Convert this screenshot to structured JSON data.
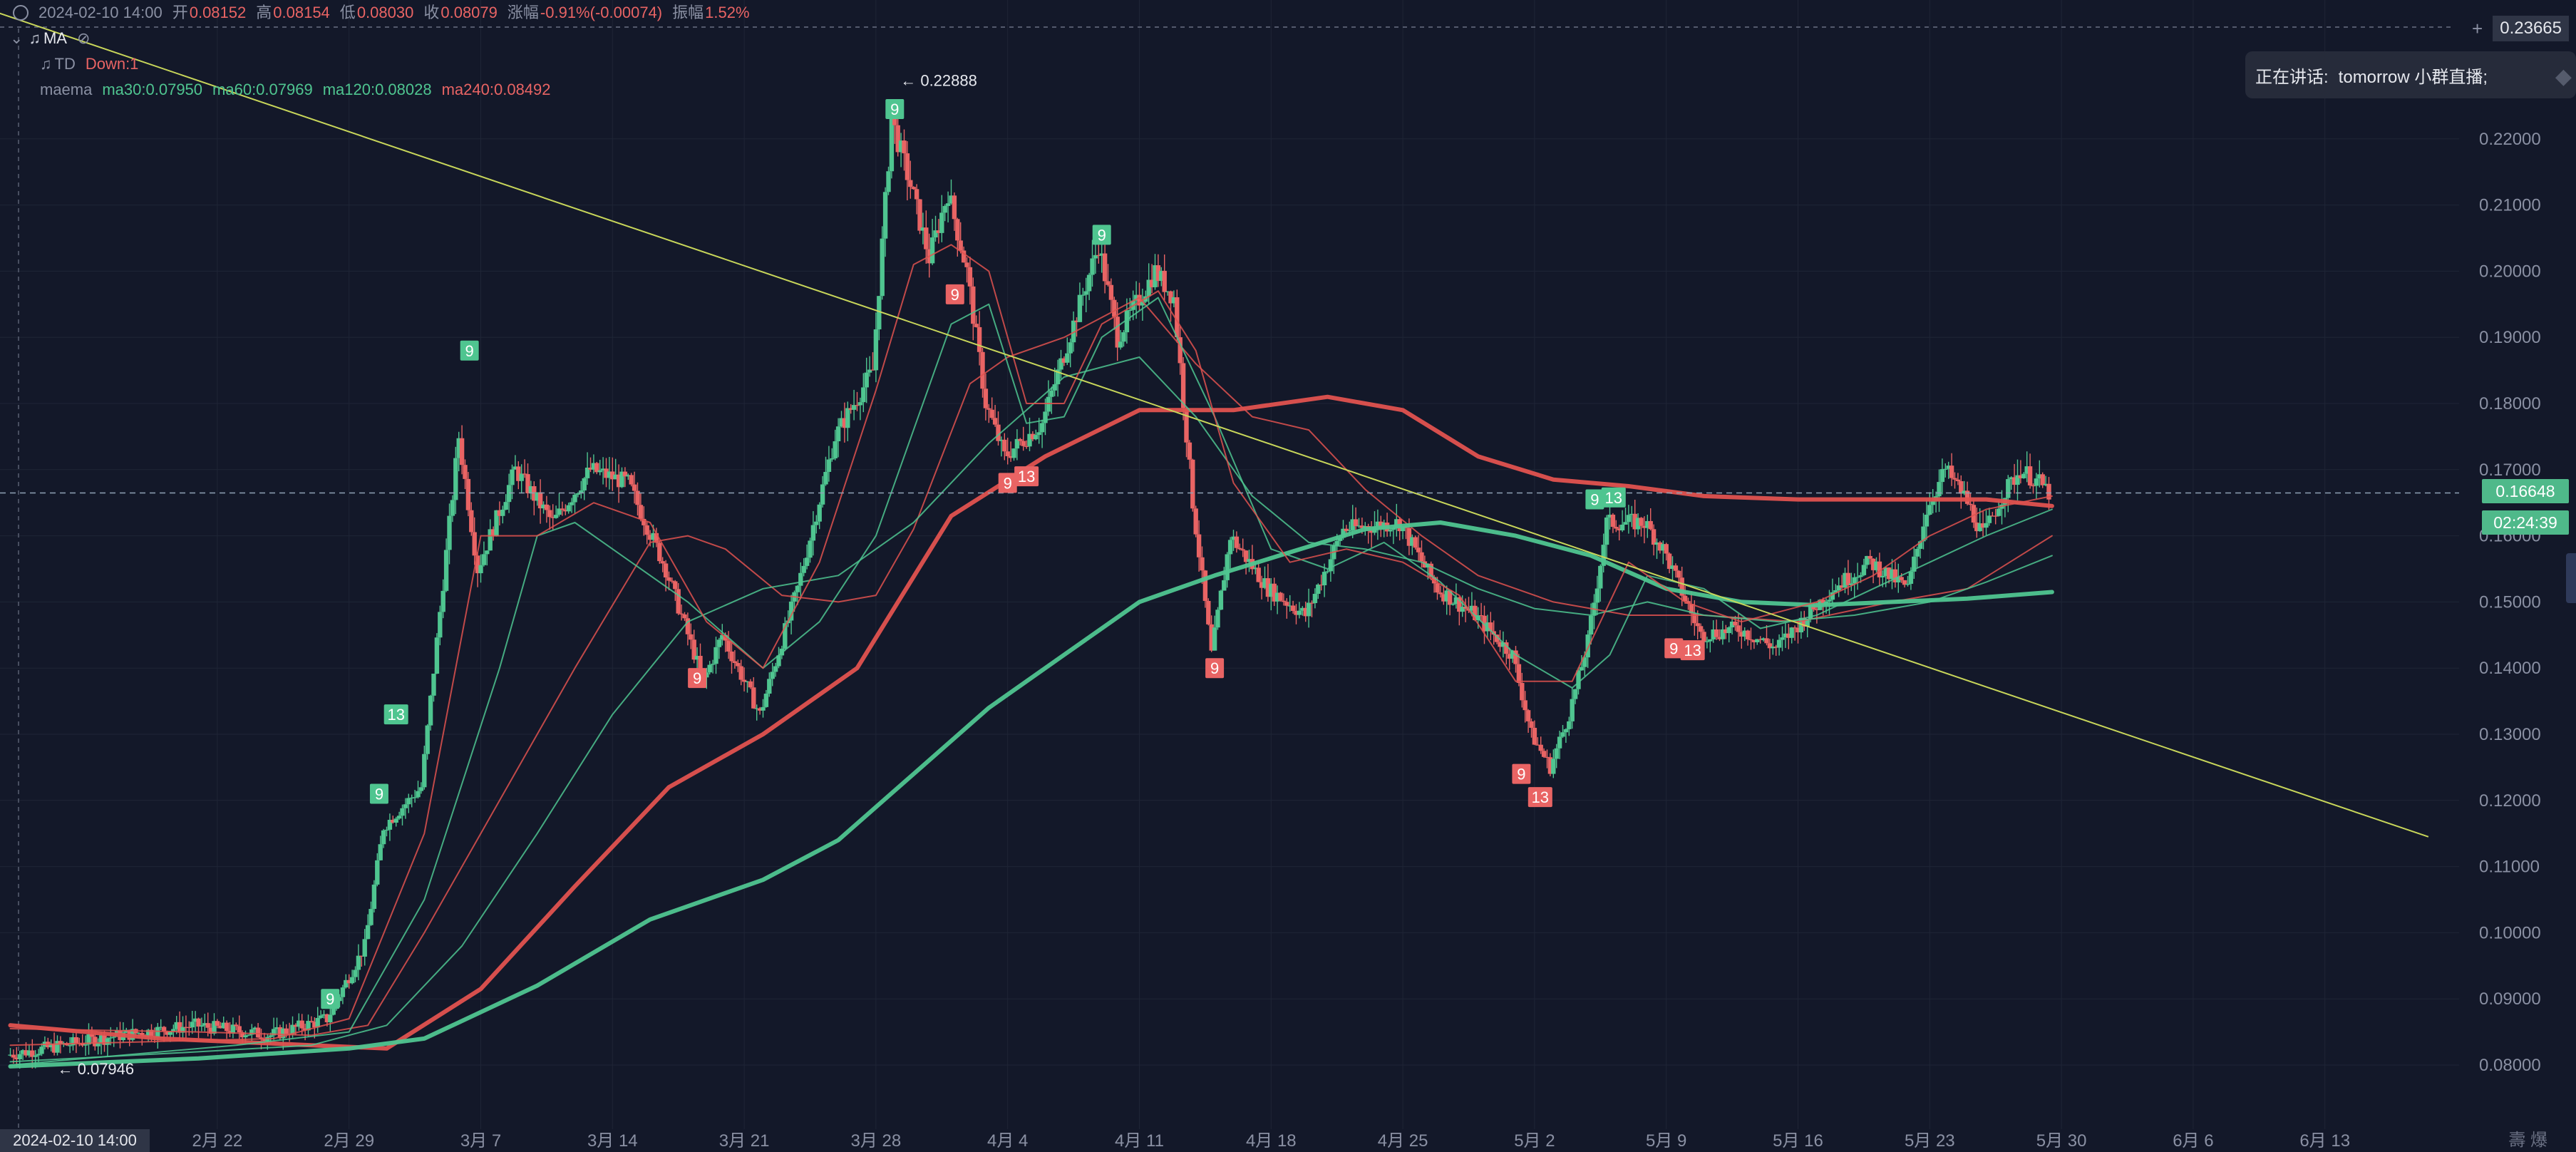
{
  "header": {
    "datetime": "2024-02-10 14:00",
    "open_label": "开",
    "open": "0.08152",
    "high_label": "高",
    "high": "0.08154",
    "low_label": "低",
    "low": "0.08030",
    "close_label": "收",
    "close": "0.08079",
    "change_label": "涨幅",
    "change": "-0.91%(-0.00074)",
    "amplitude_label": "振幅",
    "amplitude": "1.52%"
  },
  "indicators": {
    "ma_label": "MA",
    "td_label": "TD",
    "td_value": "Down:1",
    "maema_label": "maema",
    "ma30": "ma30:0.07950",
    "ma60": "ma60:0.07969",
    "ma120": "ma120:0.08028",
    "ma240": "ma240:0.08492"
  },
  "popup": {
    "label": "正在讲话:",
    "text": "tomorrow 小群直播;"
  },
  "price_axis": {
    "top_value": "0.23665",
    "current_price": "0.16648",
    "countdown": "02:24:39"
  },
  "crosshair_date": "2024-02-10 14:00",
  "bottom_right_text": "壽  爆",
  "colors": {
    "up": "#4fc590",
    "down": "#e96464",
    "ma_red": "#e0524f",
    "ma_green": "#4fc590",
    "trendline": "#c8d65a",
    "background": "#131829"
  },
  "chart_data": {
    "type": "line",
    "title": "",
    "xlabel": "",
    "ylabel": "",
    "ylim": [
      0.0738,
      0.2354
    ],
    "y_ticks": [
      "0.22000",
      "0.21000",
      "0.20000",
      "0.19000",
      "0.18000",
      "0.17000",
      "0.16000",
      "0.15000",
      "0.14000",
      "0.13000",
      "0.12000",
      "0.11000",
      "0.10000",
      "0.09000",
      "0.08000"
    ],
    "x_ticks": [
      {
        "label": "2月 22",
        "day": 11
      },
      {
        "label": "2月 29",
        "day": 18
      },
      {
        "label": "3月 7",
        "day": 25
      },
      {
        "label": "3月 14",
        "day": 32
      },
      {
        "label": "3月 21",
        "day": 39
      },
      {
        "label": "3月 28",
        "day": 46
      },
      {
        "label": "4月 4",
        "day": 53
      },
      {
        "label": "4月 11",
        "day": 60
      },
      {
        "label": "4月 18",
        "day": 67
      },
      {
        "label": "4月 25",
        "day": 74
      },
      {
        "label": "5月 2",
        "day": 81
      },
      {
        "label": "5月 9",
        "day": 88
      },
      {
        "label": "5月 16",
        "day": 95
      },
      {
        "label": "5月 23",
        "day": 102
      },
      {
        "label": "5月 30",
        "day": 109
      },
      {
        "label": "6月 6",
        "day": 116
      },
      {
        "label": "6月 13",
        "day": 123
      }
    ],
    "price_path": [
      [
        0,
        0.0815
      ],
      [
        6,
        0.0845
      ],
      [
        10,
        0.086
      ],
      [
        14,
        0.0845
      ],
      [
        17,
        0.087
      ],
      [
        19,
        0.098
      ],
      [
        20,
        0.116
      ],
      [
        22,
        0.122
      ],
      [
        24,
        0.175
      ],
      [
        25,
        0.155
      ],
      [
        27,
        0.17
      ],
      [
        29,
        0.162
      ],
      [
        31,
        0.17
      ],
      [
        33,
        0.168
      ],
      [
        35,
        0.155
      ],
      [
        37,
        0.138
      ],
      [
        38,
        0.145
      ],
      [
        40,
        0.133
      ],
      [
        42,
        0.152
      ],
      [
        44,
        0.175
      ],
      [
        46,
        0.185
      ],
      [
        47,
        0.223
      ],
      [
        48,
        0.213
      ],
      [
        49,
        0.202
      ],
      [
        50,
        0.212
      ],
      [
        51,
        0.2
      ],
      [
        52,
        0.18
      ],
      [
        53,
        0.172
      ],
      [
        55,
        0.177
      ],
      [
        57,
        0.195
      ],
      [
        58,
        0.204
      ],
      [
        59,
        0.19
      ],
      [
        61,
        0.2
      ],
      [
        62,
        0.196
      ],
      [
        63,
        0.165
      ],
      [
        64,
        0.142
      ],
      [
        65,
        0.16
      ],
      [
        67,
        0.152
      ],
      [
        69,
        0.148
      ],
      [
        71,
        0.161
      ],
      [
        74,
        0.162
      ],
      [
        76,
        0.152
      ],
      [
        78,
        0.148
      ],
      [
        80,
        0.142
      ],
      [
        81,
        0.13
      ],
      [
        82,
        0.125
      ],
      [
        83,
        0.133
      ],
      [
        84,
        0.144
      ],
      [
        85,
        0.162
      ],
      [
        87,
        0.162
      ],
      [
        88,
        0.158
      ],
      [
        90,
        0.145
      ],
      [
        92,
        0.146
      ],
      [
        94,
        0.143
      ],
      [
        95,
        0.146
      ],
      [
        97,
        0.152
      ],
      [
        99,
        0.156
      ],
      [
        101,
        0.152
      ],
      [
        102,
        0.164
      ],
      [
        103,
        0.17
      ],
      [
        104,
        0.166
      ],
      [
        105,
        0.16
      ],
      [
        106,
        0.166
      ],
      [
        107,
        0.17
      ],
      [
        108,
        0.168
      ],
      [
        108.5,
        0.1665
      ]
    ],
    "series": [
      {
        "color_key": "ma_red",
        "thick": true,
        "points": [
          [
            0,
            0.086
          ],
          [
            8,
            0.084
          ],
          [
            16,
            0.083
          ],
          [
            20,
            0.0825
          ],
          [
            25,
            0.0915
          ],
          [
            30,
            0.107
          ],
          [
            35,
            0.122
          ],
          [
            40,
            0.13
          ],
          [
            45,
            0.14
          ],
          [
            50,
            0.163
          ],
          [
            55,
            0.172
          ],
          [
            60,
            0.179
          ],
          [
            65,
            0.179
          ],
          [
            70,
            0.181
          ],
          [
            74,
            0.179
          ],
          [
            78,
            0.172
          ],
          [
            82,
            0.1685
          ],
          [
            86,
            0.1675
          ],
          [
            90,
            0.166
          ],
          [
            95,
            0.1655
          ],
          [
            100,
            0.1655
          ],
          [
            105,
            0.1655
          ],
          [
            108.5,
            0.1645
          ]
        ]
      },
      {
        "color_key": "ma_red",
        "thick": false,
        "points": [
          [
            0,
            0.0855
          ],
          [
            10,
            0.085
          ],
          [
            16,
            0.0845
          ],
          [
            19,
            0.086
          ],
          [
            22,
            0.1
          ],
          [
            25,
            0.115
          ],
          [
            30,
            0.14
          ],
          [
            34,
            0.159
          ],
          [
            36,
            0.16
          ],
          [
            38,
            0.158
          ],
          [
            41,
            0.151
          ],
          [
            44,
            0.15
          ],
          [
            46,
            0.151
          ],
          [
            48,
            0.161
          ],
          [
            51,
            0.183
          ],
          [
            53,
            0.187
          ],
          [
            56,
            0.19
          ],
          [
            60,
            0.196
          ],
          [
            63,
            0.186
          ],
          [
            66,
            0.178
          ],
          [
            69,
            0.176
          ],
          [
            72,
            0.167
          ],
          [
            75,
            0.16
          ],
          [
            78,
            0.154
          ],
          [
            82,
            0.15
          ],
          [
            86,
            0.148
          ],
          [
            90,
            0.148
          ],
          [
            95,
            0.147
          ],
          [
            100,
            0.15
          ],
          [
            104,
            0.152
          ],
          [
            108.5,
            0.16
          ]
        ]
      },
      {
        "color_key": "ma_green",
        "thick": true,
        "points": [
          [
            0,
            0.0798
          ],
          [
            10,
            0.081
          ],
          [
            18,
            0.0825
          ],
          [
            22,
            0.084
          ],
          [
            28,
            0.092
          ],
          [
            34,
            0.102
          ],
          [
            40,
            0.108
          ],
          [
            44,
            0.114
          ],
          [
            48,
            0.124
          ],
          [
            52,
            0.134
          ],
          [
            56,
            0.142
          ],
          [
            60,
            0.15
          ],
          [
            64,
            0.154
          ],
          [
            68,
            0.1575
          ],
          [
            72,
            0.161
          ],
          [
            76,
            0.162
          ],
          [
            80,
            0.16
          ],
          [
            84,
            0.157
          ],
          [
            88,
            0.152
          ],
          [
            92,
            0.15
          ],
          [
            96,
            0.1495
          ],
          [
            100,
            0.15
          ],
          [
            104,
            0.1505
          ],
          [
            108.5,
            0.1515
          ]
        ]
      },
      {
        "color_key": "ma_green",
        "thick": false,
        "points": [
          [
            0,
            0.0805
          ],
          [
            10,
            0.082
          ],
          [
            16,
            0.083
          ],
          [
            20,
            0.086
          ],
          [
            24,
            0.098
          ],
          [
            28,
            0.115
          ],
          [
            32,
            0.133
          ],
          [
            36,
            0.147
          ],
          [
            40,
            0.152
          ],
          [
            44,
            0.154
          ],
          [
            48,
            0.162
          ],
          [
            52,
            0.174
          ],
          [
            56,
            0.184
          ],
          [
            60,
            0.187
          ],
          [
            63,
            0.178
          ],
          [
            66,
            0.166
          ],
          [
            69,
            0.159
          ],
          [
            72,
            0.158
          ],
          [
            75,
            0.156
          ],
          [
            78,
            0.152
          ],
          [
            81,
            0.149
          ],
          [
            84,
            0.148
          ],
          [
            87,
            0.15
          ],
          [
            90,
            0.148
          ],
          [
            94,
            0.147
          ],
          [
            98,
            0.148
          ],
          [
            102,
            0.15
          ],
          [
            105,
            0.153
          ],
          [
            108.5,
            0.157
          ]
        ]
      },
      {
        "color_key": "ma_green",
        "thick": false,
        "points": [
          [
            0,
            0.08
          ],
          [
            12,
            0.083
          ],
          [
            18,
            0.085
          ],
          [
            22,
            0.105
          ],
          [
            26,
            0.14
          ],
          [
            28,
            0.16
          ],
          [
            30,
            0.162
          ],
          [
            33,
            0.156
          ],
          [
            36,
            0.15
          ],
          [
            40,
            0.14
          ],
          [
            43,
            0.147
          ],
          [
            46,
            0.16
          ],
          [
            48,
            0.176
          ],
          [
            50,
            0.192
          ],
          [
            52,
            0.195
          ],
          [
            54,
            0.177
          ],
          [
            56,
            0.178
          ],
          [
            58,
            0.19
          ],
          [
            61,
            0.196
          ],
          [
            64,
            0.178
          ],
          [
            67,
            0.158
          ],
          [
            70,
            0.155
          ],
          [
            73,
            0.159
          ],
          [
            76,
            0.153
          ],
          [
            80,
            0.142
          ],
          [
            83,
            0.137
          ],
          [
            85,
            0.142
          ],
          [
            87,
            0.154
          ],
          [
            90,
            0.152
          ],
          [
            93,
            0.146
          ],
          [
            96,
            0.148
          ],
          [
            99,
            0.152
          ],
          [
            102,
            0.156
          ],
          [
            105,
            0.16
          ],
          [
            108.5,
            0.164
          ]
        ]
      },
      {
        "color_key": "ma_red",
        "thick": false,
        "points": [
          [
            0,
            0.083
          ],
          [
            14,
            0.084
          ],
          [
            18,
            0.087
          ],
          [
            22,
            0.115
          ],
          [
            25,
            0.16
          ],
          [
            28,
            0.16
          ],
          [
            31,
            0.165
          ],
          [
            34,
            0.162
          ],
          [
            37,
            0.147
          ],
          [
            40,
            0.14
          ],
          [
            43,
            0.156
          ],
          [
            46,
            0.182
          ],
          [
            48,
            0.201
          ],
          [
            50,
            0.204
          ],
          [
            52,
            0.2
          ],
          [
            54,
            0.18
          ],
          [
            56,
            0.18
          ],
          [
            58,
            0.192
          ],
          [
            61,
            0.197
          ],
          [
            63,
            0.188
          ],
          [
            65,
            0.168
          ],
          [
            68,
            0.156
          ],
          [
            71,
            0.158
          ],
          [
            74,
            0.156
          ],
          [
            77,
            0.151
          ],
          [
            80,
            0.138
          ],
          [
            83,
            0.138
          ],
          [
            86,
            0.156
          ],
          [
            89,
            0.15
          ],
          [
            92,
            0.147
          ],
          [
            96,
            0.15
          ],
          [
            99,
            0.154
          ],
          [
            102,
            0.16
          ],
          [
            105,
            0.164
          ],
          [
            108.5,
            0.166
          ]
        ]
      }
    ],
    "trendline": [
      [
        -1,
        0.2394
      ],
      [
        128.5,
        0.1145
      ]
    ],
    "td_markers": [
      {
        "day": 17,
        "price": 0.09,
        "text": "9",
        "kind": "up"
      },
      {
        "day": 19.6,
        "price": 0.121,
        "text": "9",
        "kind": "up"
      },
      {
        "day": 20.5,
        "price": 0.133,
        "text": "13",
        "kind": "up"
      },
      {
        "day": 24.4,
        "price": 0.188,
        "text": "9",
        "kind": "up"
      },
      {
        "day": 36.5,
        "price": 0.1385,
        "text": "9",
        "kind": "down"
      },
      {
        "day": 47,
        "price": 0.2245,
        "text": "9",
        "kind": "up"
      },
      {
        "day": 50.2,
        "price": 0.1965,
        "text": "9",
        "kind": "down"
      },
      {
        "day": 53,
        "price": 0.168,
        "text": "9",
        "kind": "down"
      },
      {
        "day": 54,
        "price": 0.169,
        "text": "13",
        "kind": "down"
      },
      {
        "day": 58,
        "price": 0.2055,
        "text": "9",
        "kind": "up"
      },
      {
        "day": 64,
        "price": 0.14,
        "text": "9",
        "kind": "down"
      },
      {
        "day": 80.3,
        "price": 0.124,
        "text": "9",
        "kind": "down"
      },
      {
        "day": 81.3,
        "price": 0.1205,
        "text": "13",
        "kind": "down"
      },
      {
        "day": 84.2,
        "price": 0.1655,
        "text": "9",
        "kind": "up"
      },
      {
        "day": 85.2,
        "price": 0.1658,
        "text": "13",
        "kind": "up"
      },
      {
        "day": 88.4,
        "price": 0.143,
        "text": "9",
        "kind": "down"
      },
      {
        "day": 89.4,
        "price": 0.1427,
        "text": "13",
        "kind": "down"
      }
    ],
    "annotations": [
      {
        "day": 47.3,
        "price": 0.22888,
        "text": "← 0.22888"
      },
      {
        "day": 2.5,
        "price": 0.07946,
        "text": "← 0.07946"
      }
    ]
  }
}
